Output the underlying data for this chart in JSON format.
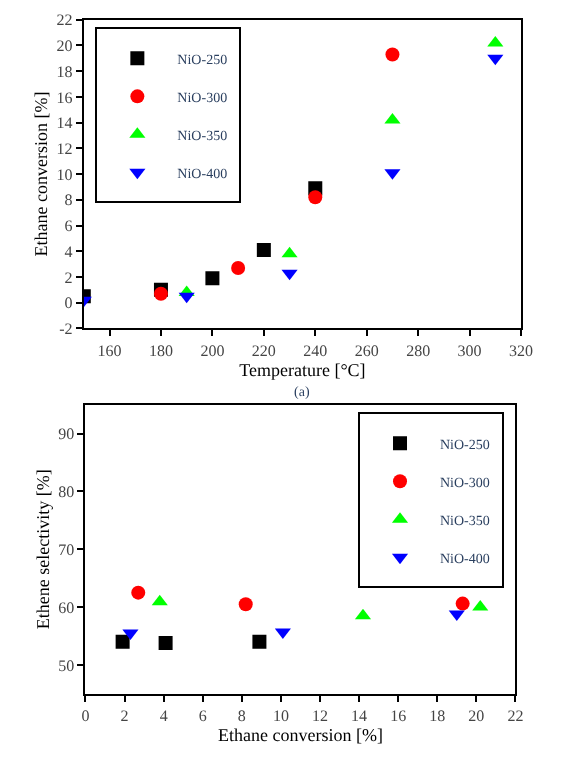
{
  "chart_data": [
    {
      "type": "scatter",
      "xlabel": "Temperature [°C]",
      "ylabel": "Ethane conversion [%]",
      "annotations": [
        "(a)"
      ],
      "xlim": [
        150,
        320
      ],
      "xticks": [
        160,
        180,
        200,
        220,
        240,
        260,
        280,
        300,
        320
      ],
      "ylim": [
        -2,
        22
      ],
      "yticks": [
        -2,
        0,
        2,
        4,
        6,
        8,
        10,
        12,
        14,
        16,
        18,
        20,
        22
      ],
      "legend": "top left",
      "series": [
        {
          "name": "NiO-250",
          "color": "#000000",
          "marker": "square",
          "x": [
            150,
            180,
            200,
            220,
            240
          ],
          "values": [
            0.5,
            1.0,
            1.9,
            4.1,
            8.9
          ]
        },
        {
          "name": "NiO-300",
          "color": "#ff0000",
          "marker": "circle",
          "x": [
            180,
            210,
            240,
            270
          ],
          "values": [
            0.7,
            2.7,
            8.2,
            19.3
          ]
        },
        {
          "name": "NiO-350",
          "color": "#00ff00",
          "marker": "triangle",
          "x": [
            190,
            230,
            270,
            310
          ],
          "values": [
            0.8,
            3.8,
            14.2,
            20.2
          ]
        },
        {
          "name": "NiO-400",
          "color": "#0000ff",
          "marker": "triangle-down",
          "x": [
            150,
            190,
            230,
            270,
            310
          ],
          "values": [
            0.2,
            0.5,
            2.3,
            10.1,
            19.0
          ]
        }
      ]
    },
    {
      "type": "scatter",
      "xlabel": "Ethane conversion [%]",
      "ylabel": "Ethene selectivity [%]",
      "xlim": [
        0,
        22
      ],
      "xticks": [
        0,
        2,
        4,
        6,
        8,
        10,
        12,
        14,
        16,
        18,
        20,
        22
      ],
      "ylim": [
        45,
        95
      ],
      "yticks": [
        50,
        60,
        70,
        80,
        90
      ],
      "legend": "top right",
      "series": [
        {
          "name": "NiO-250",
          "color": "#000000",
          "marker": "square",
          "x": [
            1.9,
            4.1,
            8.9
          ],
          "values": [
            54.0,
            53.8,
            54.0
          ]
        },
        {
          "name": "NiO-300",
          "color": "#ff0000",
          "marker": "circle",
          "x": [
            2.7,
            8.2,
            19.3
          ],
          "values": [
            62.5,
            60.5,
            60.6
          ]
        },
        {
          "name": "NiO-350",
          "color": "#00ff00",
          "marker": "triangle",
          "x": [
            3.8,
            14.2,
            20.2
          ],
          "values": [
            60.9,
            58.5,
            60.0
          ]
        },
        {
          "name": "NiO-400",
          "color": "#0000ff",
          "marker": "triangle-down",
          "x": [
            2.3,
            10.1,
            19.0
          ],
          "values": [
            55.5,
            55.7,
            58.8
          ]
        }
      ]
    }
  ]
}
